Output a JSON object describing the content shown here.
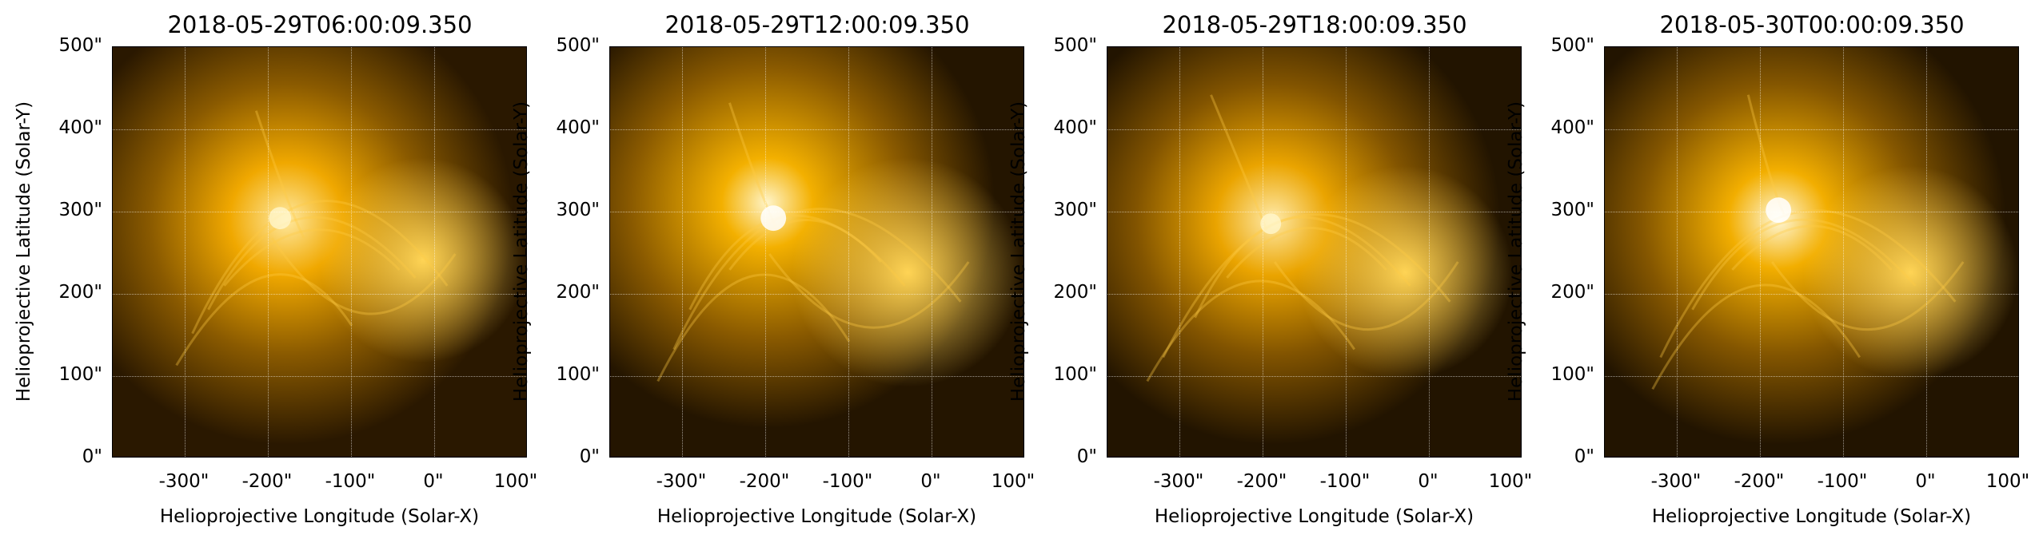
{
  "figure": {
    "panels": [
      {
        "title": "2018-05-29T06:00:09.350",
        "xlabel": "Helioprojective Longitude (Solar-X)",
        "ylabel": "Helioprojective Latitude (Solar-Y)"
      },
      {
        "title": "2018-05-29T12:00:09.350",
        "xlabel": "Helioprojective Longitude (Solar-X)",
        "ylabel": "Helioprojective Latitude (Solar-Y)"
      },
      {
        "title": "2018-05-29T18:00:09.350",
        "xlabel": "Helioprojective Longitude (Solar-X)",
        "ylabel": "Helioprojective Latitude (Solar-Y)"
      },
      {
        "title": "2018-05-30T00:00:09.350",
        "xlabel": "Helioprojective Longitude (Solar-X)",
        "ylabel": "Helioprojective Latitude (Solar-Y)"
      }
    ],
    "x_ticks": [
      "-300\"",
      "-200\"",
      "-100\"",
      "0\"",
      "100\""
    ],
    "y_ticks": [
      "500\"",
      "400\"",
      "300\"",
      "200\"",
      "100\"",
      "0\""
    ],
    "colormap": {
      "dark": "#1a0e00",
      "mid": "#b87800",
      "bright": "#ffcc33",
      "white": "#fffbe6"
    }
  }
}
